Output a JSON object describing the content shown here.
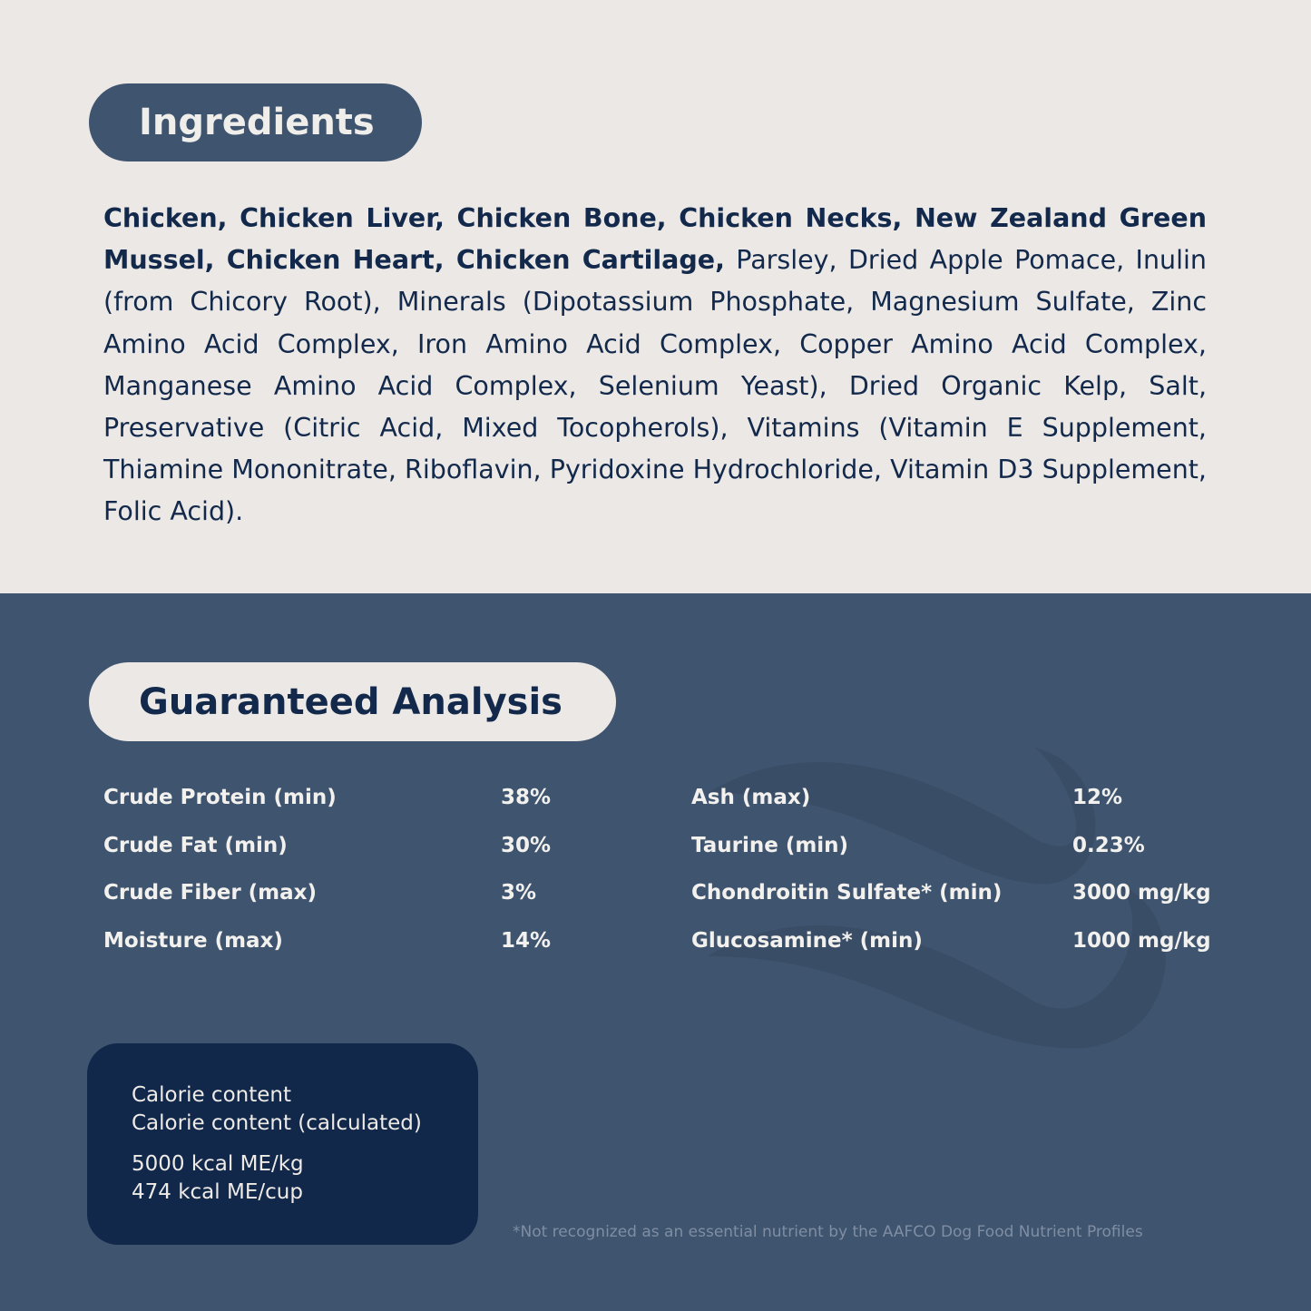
{
  "ingredients": {
    "title": "Ingredients",
    "bold_text": "Chicken, Chicken Liver, Chicken Bone, Chicken Necks, New Zealand Green Mussel, Chicken Heart, Chicken Cartilage,",
    "regular_text": " Parsley, Dried Apple Pomace, Inulin (from Chicory Root), Minerals (Dipotassium Phosphate, Magnesium Sulfate, Zinc Amino Acid Complex, Iron Amino Acid Complex, Copper Amino Acid Complex, Manganese Amino Acid Complex, Selenium Yeast), Dried Organic Kelp, Salt, Preservative (Citric Acid, Mixed Tocopherols), Vitamins (Vitamin E Supplement, Thiamine Mononitrate, Riboflavin, Pyridoxine Hydrochloride, Vitamin D3 Supplement, Folic Acid)."
  },
  "analysis": {
    "title": "Guaranteed Analysis",
    "left": [
      {
        "label": "Crude Protein (min)",
        "value": "38%"
      },
      {
        "label": "Crude Fat (min)",
        "value": "30%"
      },
      {
        "label": "Crude Fiber (max)",
        "value": "3%"
      },
      {
        "label": "Moisture (max)",
        "value": "14%"
      }
    ],
    "right": [
      {
        "label": "Ash (max)",
        "value": "12%"
      },
      {
        "label": "Taurine (min)",
        "value": "0.23%"
      },
      {
        "label": "Chondroitin Sulfate* (min)",
        "value": "3000 mg/kg"
      },
      {
        "label": "Glucosamine* (min)",
        "value": "1000 mg/kg"
      }
    ]
  },
  "calorie": {
    "line1": "Calorie content",
    "line2": "Calorie content (calculated)",
    "line3": "5000 kcal ME/kg",
    "line4": "474 kcal ME/cup"
  },
  "footnote": "*Not recognized as an essential nutrient by the AAFCO Dog Food Nutrient Profiles",
  "colors": {
    "light_bg": "#ebe8e5",
    "slate_blue": "#3f546f",
    "navy": "#12284a",
    "text_navy": "#13294b"
  }
}
